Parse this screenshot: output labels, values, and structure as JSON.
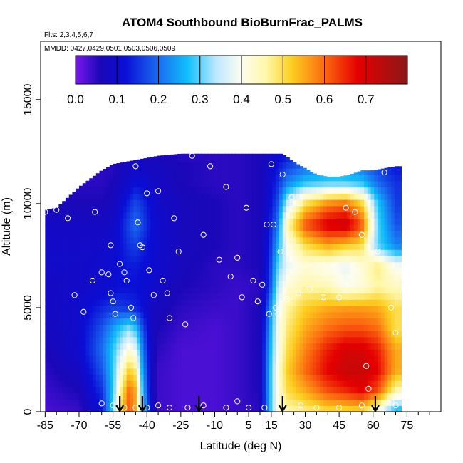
{
  "chart_data": {
    "type": "heatmap",
    "title": "ATOM4 Southbound BioBurnFrac_PALMS",
    "subtitle_flights": "Flts: 2,3,4,5,6,7",
    "subtitle_dates": "MMDD: 0427,0429,0501,0503,0506,0509",
    "xlabel": "Latitude (deg N)",
    "ylabel": "Altitude (m)",
    "xlim": [
      -87,
      90
    ],
    "ylim": [
      0,
      17800
    ],
    "x_tick_values": [
      -85,
      -70,
      -55,
      -40,
      -25,
      -10,
      5,
      15,
      30,
      45,
      60,
      75
    ],
    "x_tick_labels": [
      "-85",
      "-70",
      "-55",
      "-40",
      "-25",
      "-10",
      "5",
      "15",
      "30",
      "45",
      "60",
      "75"
    ],
    "x_minor_ticks": [
      -80,
      -75,
      -65,
      -60,
      -50,
      -45,
      -35,
      -30,
      -20,
      -15,
      -5,
      0,
      10,
      20,
      25,
      35,
      40,
      50,
      55,
      65,
      70,
      80,
      85
    ],
    "y_tick_values": [
      0,
      5000,
      10000,
      15000
    ],
    "y_tick_labels": [
      "0",
      "5000",
      "10000",
      "15000"
    ],
    "colorbar": {
      "range": [
        0,
        0.8
      ],
      "tick_values": [
        0.0,
        0.1,
        0.2,
        0.3,
        0.4,
        0.5,
        0.6,
        0.7
      ],
      "tick_labels": [
        "0.0",
        "0.1",
        "0.2",
        "0.3",
        "0.4",
        "0.5",
        "0.6",
        "0.7"
      ],
      "stops": [
        {
          "v": 0.0,
          "color": "#7a17ee"
        },
        {
          "v": 0.06,
          "color": "#1a08b8"
        },
        {
          "v": 0.12,
          "color": "#0a0ed6"
        },
        {
          "v": 0.2,
          "color": "#1a6cf0"
        },
        {
          "v": 0.27,
          "color": "#10c0fb"
        },
        {
          "v": 0.34,
          "color": "#bfe8ff"
        },
        {
          "v": 0.4,
          "color": "#fdfdf0"
        },
        {
          "v": 0.46,
          "color": "#fff7a8"
        },
        {
          "v": 0.52,
          "color": "#fcd020"
        },
        {
          "v": 0.6,
          "color": "#fc6a10"
        },
        {
          "v": 0.68,
          "color": "#e50000"
        },
        {
          "v": 0.8,
          "color": "#8a1818"
        }
      ]
    },
    "extent": {
      "lats": [
        -85,
        -80,
        -75,
        -70,
        -65,
        -60,
        -55,
        -50,
        -45,
        -40,
        -35,
        -30,
        -25,
        -20,
        -15,
        -10,
        -5,
        0,
        5,
        10,
        15,
        20,
        25,
        30,
        35,
        40,
        45,
        50,
        55,
        60,
        65,
        70,
        72
      ],
      "tops": [
        9700,
        9800,
        10300,
        10800,
        11200,
        11600,
        11900,
        12000,
        12100,
        12200,
        12300,
        12350,
        12400,
        12400,
        12400,
        12400,
        12400,
        12400,
        12400,
        12400,
        12400,
        12400,
        12000,
        11700,
        11400,
        11300,
        11300,
        11400,
        11600,
        11600,
        11700,
        11800,
        11800
      ]
    },
    "field_grid": {
      "lats": [
        -85,
        -70,
        -60,
        -55,
        -52,
        -48,
        -45,
        -42,
        -38,
        -35,
        -25,
        -10,
        0,
        10,
        14,
        18,
        22,
        30,
        40,
        48,
        55,
        62,
        70
      ],
      "alts": [
        0,
        1000,
        2000,
        3000,
        4000,
        5000,
        6000,
        7000,
        8000,
        9000,
        10000,
        11000,
        12000,
        12400
      ],
      "values": [
        [
          0.03,
          0.04,
          0.12,
          0.3,
          0.5,
          0.62,
          0.55,
          0.3,
          0.1,
          0.04,
          0.03,
          0.03,
          0.04,
          0.05,
          0.25,
          0.42,
          0.45,
          0.47,
          0.5,
          0.5,
          0.5,
          0.4,
          0.25
        ],
        [
          0.04,
          0.06,
          0.15,
          0.28,
          0.45,
          0.6,
          0.55,
          0.28,
          0.08,
          0.04,
          0.03,
          0.03,
          0.04,
          0.06,
          0.25,
          0.42,
          0.5,
          0.55,
          0.62,
          0.65,
          0.68,
          0.62,
          0.45
        ],
        [
          0.05,
          0.08,
          0.18,
          0.28,
          0.4,
          0.52,
          0.48,
          0.25,
          0.08,
          0.04,
          0.03,
          0.03,
          0.04,
          0.06,
          0.25,
          0.42,
          0.52,
          0.6,
          0.68,
          0.72,
          0.72,
          0.68,
          0.55
        ],
        [
          0.06,
          0.1,
          0.2,
          0.28,
          0.34,
          0.42,
          0.38,
          0.22,
          0.08,
          0.05,
          0.03,
          0.03,
          0.04,
          0.06,
          0.24,
          0.4,
          0.5,
          0.58,
          0.66,
          0.7,
          0.7,
          0.66,
          0.55
        ],
        [
          0.07,
          0.1,
          0.18,
          0.24,
          0.28,
          0.32,
          0.28,
          0.18,
          0.08,
          0.06,
          0.04,
          0.03,
          0.04,
          0.06,
          0.22,
          0.4,
          0.48,
          0.55,
          0.6,
          0.62,
          0.62,
          0.6,
          0.5
        ],
        [
          0.08,
          0.1,
          0.14,
          0.16,
          0.16,
          0.15,
          0.14,
          0.12,
          0.08,
          0.07,
          0.05,
          0.04,
          0.04,
          0.06,
          0.2,
          0.38,
          0.46,
          0.52,
          0.55,
          0.56,
          0.56,
          0.55,
          0.5
        ],
        [
          0.08,
          0.09,
          0.1,
          0.11,
          0.12,
          0.12,
          0.12,
          0.11,
          0.1,
          0.09,
          0.06,
          0.05,
          0.04,
          0.05,
          0.15,
          0.34,
          0.42,
          0.46,
          0.45,
          0.4,
          0.42,
          0.46,
          0.44
        ],
        [
          0.09,
          0.09,
          0.1,
          0.11,
          0.12,
          0.13,
          0.13,
          0.12,
          0.11,
          0.1,
          0.07,
          0.05,
          0.05,
          0.06,
          0.14,
          0.3,
          0.38,
          0.42,
          0.4,
          0.38,
          0.42,
          0.48,
          0.4
        ],
        [
          0.09,
          0.09,
          0.09,
          0.1,
          0.12,
          0.15,
          0.16,
          0.14,
          0.11,
          0.1,
          0.07,
          0.06,
          0.05,
          0.06,
          0.13,
          0.26,
          0.4,
          0.5,
          0.55,
          0.52,
          0.5,
          0.3,
          0.22
        ],
        [
          0.08,
          0.08,
          0.08,
          0.09,
          0.12,
          0.17,
          0.2,
          0.17,
          0.12,
          0.1,
          0.07,
          0.06,
          0.05,
          0.06,
          0.12,
          0.22,
          0.45,
          0.62,
          0.7,
          0.72,
          0.62,
          0.3,
          0.18
        ],
        [
          0.06,
          0.06,
          0.06,
          0.07,
          0.1,
          0.14,
          0.17,
          0.15,
          0.11,
          0.09,
          0.07,
          0.06,
          0.05,
          0.06,
          0.11,
          0.18,
          0.35,
          0.5,
          0.58,
          0.6,
          0.52,
          0.28,
          0.16
        ],
        [
          0.05,
          0.05,
          0.05,
          0.06,
          0.08,
          0.1,
          0.12,
          0.11,
          0.09,
          0.08,
          0.06,
          0.05,
          0.05,
          0.06,
          0.1,
          0.15,
          0.22,
          0.28,
          0.3,
          0.3,
          0.28,
          0.2,
          0.15
        ],
        [
          0.05,
          0.05,
          0.05,
          0.05,
          0.06,
          0.07,
          0.08,
          0.08,
          0.07,
          0.07,
          0.06,
          0.05,
          0.05,
          0.06,
          0.09,
          0.12,
          0.15,
          0.18,
          0.18,
          0.18,
          0.18,
          0.15,
          0.12
        ],
        [
          0.05,
          0.05,
          0.05,
          0.05,
          0.05,
          0.06,
          0.06,
          0.06,
          0.06,
          0.06,
          0.05,
          0.05,
          0.05,
          0.06,
          0.08,
          0.1,
          0.12,
          0.14,
          0.14,
          0.14,
          0.14,
          0.12,
          0.1
        ]
      ]
    },
    "sample_points": [
      [
        -85,
        9600
      ],
      [
        -80,
        9700
      ],
      [
        -75,
        9300
      ],
      [
        -72,
        5600
      ],
      [
        -68,
        4800
      ],
      [
        -64,
        6300
      ],
      [
        -63,
        9600
      ],
      [
        -60,
        6700
      ],
      [
        -58,
        11900
      ],
      [
        -57,
        6600
      ],
      [
        -56,
        8000
      ],
      [
        -56,
        5700
      ],
      [
        -55,
        5300
      ],
      [
        -54,
        4700
      ],
      [
        -52,
        7100
      ],
      [
        -50,
        6700
      ],
      [
        -49,
        6300
      ],
      [
        -47,
        5000
      ],
      [
        -46,
        4500
      ],
      [
        -45,
        11800
      ],
      [
        -44,
        9100
      ],
      [
        -43,
        8000
      ],
      [
        -42,
        7900
      ],
      [
        -40,
        10500
      ],
      [
        -39,
        6800
      ],
      [
        -37,
        5600
      ],
      [
        -35,
        10600
      ],
      [
        -33,
        6300
      ],
      [
        -31,
        5700
      ],
      [
        -30,
        4500
      ],
      [
        -28,
        9300
      ],
      [
        -26,
        7700
      ],
      [
        -23,
        4200
      ],
      [
        -20,
        12300
      ],
      [
        -15,
        8500
      ],
      [
        -12,
        11800
      ],
      [
        -8,
        7300
      ],
      [
        -5,
        10800
      ],
      [
        -3,
        6500
      ],
      [
        0,
        7400
      ],
      [
        2,
        5500
      ],
      [
        4,
        9800
      ],
      [
        7,
        6300
      ],
      [
        9,
        5300
      ],
      [
        11,
        6100
      ],
      [
        13,
        9000
      ],
      [
        14,
        4700
      ],
      [
        15,
        11900
      ],
      [
        16,
        9000
      ],
      [
        17,
        5000
      ],
      [
        18,
        4700
      ],
      [
        19,
        7700
      ],
      [
        20,
        11400
      ],
      [
        22,
        5400
      ],
      [
        24,
        10300
      ],
      [
        27,
        5700
      ],
      [
        32,
        5900
      ],
      [
        38,
        5500
      ],
      [
        45,
        5500
      ],
      [
        48,
        9800
      ],
      [
        52,
        9600
      ],
      [
        55,
        8500
      ],
      [
        57,
        2200
      ],
      [
        58,
        1100
      ],
      [
        62,
        7700
      ],
      [
        65,
        11500
      ],
      [
        68,
        5000
      ],
      [
        70,
        3800
      ],
      [
        -60,
        400
      ],
      [
        -55,
        300
      ],
      [
        -50,
        200
      ],
      [
        -45,
        200
      ],
      [
        -40,
        200
      ],
      [
        -35,
        300
      ],
      [
        -30,
        200
      ],
      [
        -22,
        200
      ],
      [
        -15,
        300
      ],
      [
        -5,
        200
      ],
      [
        0,
        500
      ],
      [
        5,
        200
      ],
      [
        12,
        200
      ],
      [
        28,
        300
      ],
      [
        35,
        200
      ],
      [
        45,
        200
      ],
      [
        55,
        300
      ],
      [
        70,
        300
      ]
    ],
    "arrow_lats": [
      -52,
      -42,
      -17,
      20,
      61
    ]
  }
}
